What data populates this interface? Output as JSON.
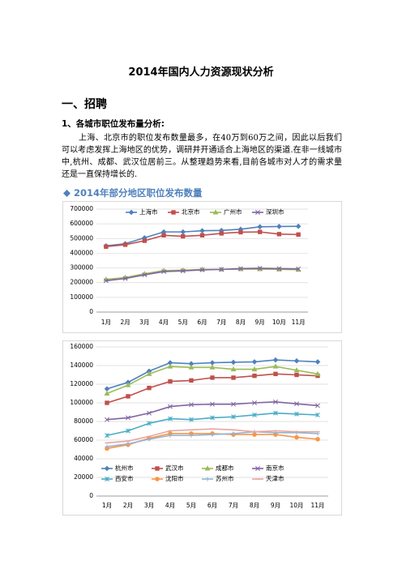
{
  "title": "2014年国内人力资源现状分析",
  "section": "一、招聘",
  "subsection": "1、各城市职位发布量分析:",
  "paragraph": "上海、北京市的职位发布数量最多，在40万到60万之间，因此以后我们可以考虑发挥上海地区的优势，调研并开通适合上海地区的渠道.在非一线城市中,杭州、成都、武汉位居前三。从整理趋势来看,目前各城市对人才的需求量还是一直保持增长的.",
  "chart_heading": "2014年部分地区职位发布数量",
  "chart_data": [
    {
      "type": "line",
      "legend": "top",
      "grid": true,
      "categories": [
        "1月",
        "2月",
        "3月",
        "4月",
        "5月",
        "6月",
        "7月",
        "8月",
        "9月",
        "10月",
        "11月"
      ],
      "ylim": [
        0,
        700000
      ],
      "yticks": [
        0,
        100000,
        200000,
        300000,
        400000,
        500000,
        600000,
        700000
      ],
      "series": [
        {
          "name": "上海市",
          "color": "#4f81bd",
          "marker": "diamond",
          "values": [
            450000,
            465000,
            505000,
            545000,
            545000,
            553000,
            555000,
            563000,
            580000,
            582000,
            583000
          ]
        },
        {
          "name": "北京市",
          "color": "#c0504d",
          "marker": "square",
          "values": [
            445000,
            458000,
            485000,
            522000,
            515000,
            522000,
            535000,
            543000,
            545000,
            530000,
            527000
          ]
        },
        {
          "name": "广州市",
          "color": "#9bbb59",
          "marker": "triangle",
          "values": [
            222000,
            235000,
            260000,
            282000,
            285000,
            290000,
            290000,
            292000,
            292000,
            290000,
            288000
          ]
        },
        {
          "name": "深圳市",
          "color": "#8064a2",
          "marker": "x",
          "values": [
            213000,
            228000,
            253000,
            275000,
            280000,
            287000,
            290000,
            295000,
            298000,
            295000,
            293000
          ]
        }
      ]
    },
    {
      "type": "line",
      "legend": "bottom",
      "grid": true,
      "categories": [
        "1月",
        "2月",
        "3月",
        "4月",
        "5月",
        "6月",
        "7月",
        "8月",
        "9月",
        "10月",
        "11月"
      ],
      "ylim": [
        0,
        160000
      ],
      "yticks": [
        0,
        20000,
        40000,
        60000,
        80000,
        100000,
        120000,
        140000,
        160000
      ],
      "series": [
        {
          "name": "杭州市",
          "color": "#4f81bd",
          "marker": "diamond",
          "values": [
            115000,
            122000,
            134000,
            143000,
            142000,
            143000,
            143500,
            144000,
            146000,
            145000,
            144000
          ]
        },
        {
          "name": "武汉市",
          "color": "#c0504d",
          "marker": "square",
          "values": [
            100000,
            107000,
            116000,
            123000,
            124000,
            127000,
            127000,
            129000,
            131000,
            130000,
            129000
          ]
        },
        {
          "name": "成都市",
          "color": "#9bbb59",
          "marker": "triangle",
          "values": [
            110000,
            119000,
            131000,
            139000,
            138000,
            138000,
            136000,
            136000,
            139000,
            135000,
            131000
          ]
        },
        {
          "name": "南京市",
          "color": "#8064a2",
          "marker": "x",
          "values": [
            82000,
            84000,
            89000,
            96000,
            98000,
            98500,
            98500,
            100000,
            101000,
            99000,
            97000
          ]
        },
        {
          "name": "西安市",
          "color": "#4bacc6",
          "marker": "star",
          "values": [
            65000,
            70000,
            78000,
            83000,
            82000,
            84000,
            85000,
            87000,
            89000,
            88000,
            87000
          ]
        },
        {
          "name": "沈阳市",
          "color": "#f79646",
          "marker": "circle",
          "values": [
            51000,
            55000,
            62000,
            67000,
            67000,
            67000,
            66000,
            66000,
            66000,
            63000,
            61000
          ]
        },
        {
          "name": "苏州市",
          "color": "#95b3d7",
          "marker": "plus",
          "values": [
            53000,
            56000,
            61000,
            65000,
            65000,
            66000,
            67000,
            69000,
            68000,
            68000,
            67000
          ]
        },
        {
          "name": "天津市",
          "color": "#e6a6a0",
          "marker": "dash",
          "values": [
            57000,
            59000,
            64000,
            70000,
            71000,
            72000,
            71000,
            69000,
            70000,
            69000,
            69000
          ]
        }
      ]
    }
  ]
}
